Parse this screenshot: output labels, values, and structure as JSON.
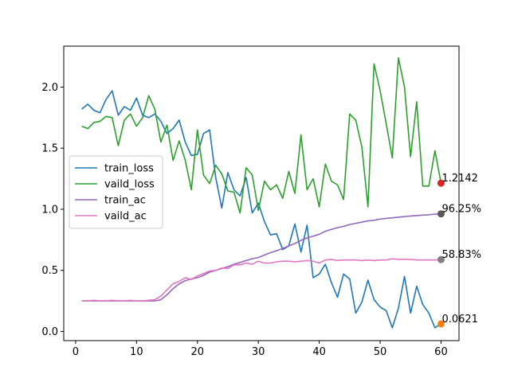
{
  "chart_data": {
    "type": "line",
    "title": "",
    "xlabel": "",
    "ylabel": "",
    "xlim": [
      -1.95,
      62.95
    ],
    "ylim": [
      -0.075,
      2.335
    ],
    "xticks": [
      0,
      10,
      20,
      30,
      40,
      50,
      60
    ],
    "yticks": [
      0.0,
      0.5,
      1.0,
      1.5,
      2.0
    ],
    "xtick_labels": [
      "0",
      "10",
      "20",
      "30",
      "40",
      "50",
      "60"
    ],
    "ytick_labels": [
      "0.0",
      "0.5",
      "1.0",
      "1.5",
      "2.0"
    ],
    "legend_position": "center-left",
    "grid": false,
    "series": [
      {
        "name": "train_loss",
        "color": "#1f77b4",
        "x": [
          1,
          2,
          3,
          4,
          5,
          6,
          7,
          8,
          9,
          10,
          11,
          12,
          13,
          14,
          15,
          16,
          17,
          18,
          19,
          20,
          21,
          22,
          23,
          24,
          25,
          26,
          27,
          28,
          29,
          30,
          31,
          32,
          33,
          34,
          35,
          36,
          37,
          38,
          39,
          40,
          41,
          42,
          43,
          44,
          45,
          46,
          47,
          48,
          49,
          50,
          51,
          52,
          53,
          54,
          55,
          56,
          57,
          58,
          59,
          60
        ],
        "values": [
          1.82,
          1.86,
          1.81,
          1.79,
          1.9,
          1.97,
          1.77,
          1.84,
          1.81,
          1.91,
          1.77,
          1.75,
          1.78,
          1.72,
          1.62,
          1.66,
          1.73,
          1.55,
          1.44,
          1.45,
          1.62,
          1.65,
          1.26,
          1.01,
          1.3,
          1.16,
          1.11,
          1.26,
          0.97,
          1.05,
          0.9,
          0.79,
          0.8,
          0.67,
          0.7,
          0.88,
          0.65,
          0.87,
          0.44,
          0.47,
          0.55,
          0.4,
          0.28,
          0.47,
          0.43,
          0.15,
          0.24,
          0.42,
          0.26,
          0.2,
          0.17,
          0.03,
          0.19,
          0.45,
          0.15,
          0.37,
          0.22,
          0.15,
          0.03,
          0.0621
        ]
      },
      {
        "name": "vaild_loss",
        "color": "#2ca02c",
        "x": [
          1,
          2,
          3,
          4,
          5,
          6,
          7,
          8,
          9,
          10,
          11,
          12,
          13,
          14,
          15,
          16,
          17,
          18,
          19,
          20,
          21,
          22,
          23,
          24,
          25,
          26,
          27,
          28,
          29,
          30,
          31,
          32,
          33,
          34,
          35,
          36,
          37,
          38,
          39,
          40,
          41,
          42,
          43,
          44,
          45,
          46,
          47,
          48,
          49,
          50,
          51,
          52,
          53,
          54,
          55,
          56,
          57,
          58,
          59,
          60
        ],
        "values": [
          1.68,
          1.66,
          1.71,
          1.72,
          1.76,
          1.75,
          1.52,
          1.73,
          1.78,
          1.68,
          1.75,
          1.93,
          1.82,
          1.55,
          1.69,
          1.4,
          1.56,
          1.4,
          1.16,
          1.65,
          1.28,
          1.21,
          1.36,
          1.29,
          1.15,
          1.14,
          0.97,
          1.34,
          1.28,
          0.99,
          1.23,
          1.16,
          1.2,
          1.09,
          1.31,
          1.13,
          1.61,
          1.16,
          1.25,
          1.02,
          1.37,
          1.23,
          1.2,
          1.08,
          1.78,
          1.73,
          1.51,
          1.02,
          2.19,
          1.97,
          1.7,
          1.42,
          2.24,
          2.0,
          1.43,
          1.88,
          1.19,
          1.19,
          1.48,
          1.2142
        ]
      },
      {
        "name": "train_ac",
        "color": "#9467bd",
        "x": [
          1,
          2,
          3,
          4,
          5,
          6,
          7,
          8,
          9,
          10,
          11,
          12,
          13,
          14,
          15,
          16,
          17,
          18,
          19,
          20,
          21,
          22,
          23,
          24,
          25,
          26,
          27,
          28,
          29,
          30,
          31,
          32,
          33,
          34,
          35,
          36,
          37,
          38,
          39,
          40,
          41,
          42,
          43,
          44,
          45,
          46,
          47,
          48,
          49,
          50,
          51,
          52,
          53,
          54,
          55,
          56,
          57,
          58,
          59,
          60
        ],
        "values": [
          0.25,
          0.25,
          0.25,
          0.25,
          0.25,
          0.25,
          0.25,
          0.25,
          0.25,
          0.25,
          0.25,
          0.25,
          0.25,
          0.26,
          0.3,
          0.35,
          0.39,
          0.415,
          0.43,
          0.44,
          0.46,
          0.485,
          0.5,
          0.515,
          0.53,
          0.55,
          0.565,
          0.58,
          0.595,
          0.605,
          0.625,
          0.645,
          0.66,
          0.68,
          0.7,
          0.72,
          0.745,
          0.765,
          0.78,
          0.795,
          0.82,
          0.835,
          0.85,
          0.86,
          0.875,
          0.885,
          0.895,
          0.905,
          0.91,
          0.92,
          0.925,
          0.93,
          0.935,
          0.94,
          0.945,
          0.948,
          0.952,
          0.955,
          0.96,
          0.9625
        ]
      },
      {
        "name": "vaild_ac",
        "color": "#e377c2",
        "x": [
          1,
          2,
          3,
          4,
          5,
          6,
          7,
          8,
          9,
          10,
          11,
          12,
          13,
          14,
          15,
          16,
          17,
          18,
          19,
          20,
          21,
          22,
          23,
          24,
          25,
          26,
          27,
          28,
          29,
          30,
          31,
          32,
          33,
          34,
          35,
          36,
          37,
          38,
          39,
          40,
          41,
          42,
          43,
          44,
          45,
          46,
          47,
          48,
          49,
          50,
          51,
          52,
          53,
          54,
          55,
          56,
          57,
          58,
          59,
          60
        ],
        "values": [
          0.25,
          0.25,
          0.255,
          0.25,
          0.25,
          0.255,
          0.25,
          0.25,
          0.255,
          0.25,
          0.25,
          0.255,
          0.26,
          0.29,
          0.34,
          0.39,
          0.41,
          0.44,
          0.425,
          0.455,
          0.475,
          0.495,
          0.5,
          0.52,
          0.515,
          0.545,
          0.545,
          0.56,
          0.55,
          0.575,
          0.56,
          0.56,
          0.57,
          0.575,
          0.575,
          0.57,
          0.575,
          0.58,
          0.575,
          0.56,
          0.585,
          0.59,
          0.58,
          0.585,
          0.585,
          0.585,
          0.58,
          0.585,
          0.58,
          0.585,
          0.585,
          0.595,
          0.59,
          0.59,
          0.59,
          0.585,
          0.585,
          0.585,
          0.585,
          0.5883
        ]
      }
    ],
    "end_markers": [
      {
        "x": 60,
        "y": 1.2142,
        "color": "#d62728",
        "label": "1.2142"
      },
      {
        "x": 60,
        "y": 0.9625,
        "color": "#595959",
        "label": "96.25%"
      },
      {
        "x": 60,
        "y": 0.5883,
        "color": "#7f7f7f",
        "label": "58.83%"
      },
      {
        "x": 60,
        "y": 0.0621,
        "color": "#ff7f0e",
        "label": "0.0621"
      }
    ]
  }
}
